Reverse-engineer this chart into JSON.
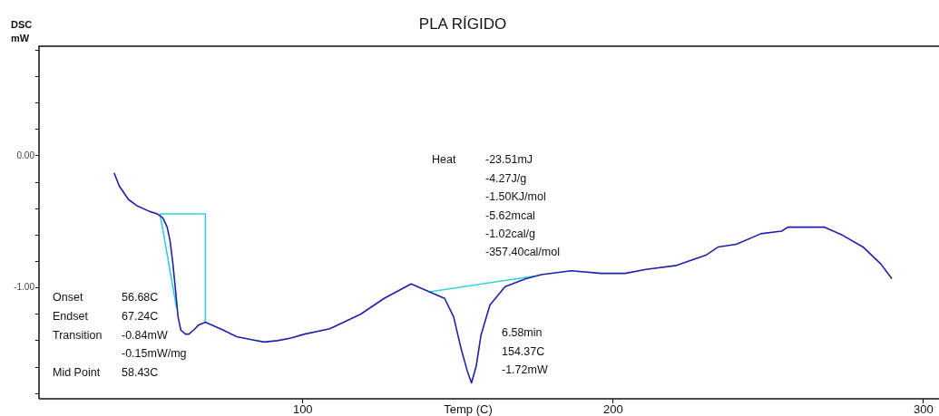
{
  "chart_data": {
    "type": "line",
    "title": "PLA RÍGIDO",
    "xlabel": "Temp (C)",
    "ylabel": "DSC\nmW",
    "xlim": [
      15,
      305
    ],
    "ylim": [
      -1.84,
      0.83
    ],
    "xticks": [
      100,
      200,
      300
    ],
    "yticks": [
      {
        "value": 0.8,
        "label": null
      },
      {
        "value": 0.6,
        "label": null
      },
      {
        "value": 0.4,
        "label": null
      },
      {
        "value": 0.2,
        "label": null
      },
      {
        "value": 0,
        "label": "0.00"
      },
      {
        "value": -0.2,
        "label": null
      },
      {
        "value": -0.4,
        "label": null
      },
      {
        "value": -0.6,
        "label": null
      },
      {
        "value": -0.8,
        "label": null
      },
      {
        "value": -1,
        "label": "-1.00"
      },
      {
        "value": -1.2,
        "label": null
      },
      {
        "value": -1.4,
        "label": null
      },
      {
        "value": -1.6,
        "label": null
      },
      {
        "value": -1.8,
        "label": null
      }
    ],
    "series": [
      {
        "color": "#2020a8",
        "x": [
          39.2,
          40.9,
          43.8,
          46.7,
          50.5,
          53.1,
          54.9,
          56.3,
          57.2,
          58.1,
          59.0,
          59.8,
          60.7,
          62.2,
          63.3,
          64.8,
          66.5,
          68.6,
          70.6,
          74.4,
          78.7,
          83.1,
          87.5,
          91.8,
          96.2,
          100.6,
          108.7,
          118.6,
          126.2,
          134.9,
          140.8,
          145.7,
          148.6,
          150.9,
          153.0,
          154.37,
          155.9,
          157.4,
          160.3,
          165.2,
          171.9,
          176.9,
          186.5,
          196.1,
          203.9,
          210.6,
          220.5,
          230.1,
          233.9,
          239.7,
          247.6,
          254.3,
          256.3,
          263.0,
          268.0,
          273.8,
          280.5,
          286.3,
          289.8
        ],
        "values": [
          -0.13,
          -0.23,
          -0.33,
          -0.38,
          -0.42,
          -0.44,
          -0.47,
          -0.54,
          -0.64,
          -0.81,
          -1.02,
          -1.22,
          -1.32,
          -1.35,
          -1.35,
          -1.32,
          -1.28,
          -1.26,
          -1.28,
          -1.32,
          -1.37,
          -1.39,
          -1.41,
          -1.4,
          -1.38,
          -1.35,
          -1.31,
          -1.2,
          -1.08,
          -0.97,
          -1.03,
          -1.08,
          -1.22,
          -1.45,
          -1.63,
          -1.72,
          -1.59,
          -1.36,
          -1.13,
          -0.99,
          -0.93,
          -0.9,
          -0.87,
          -0.89,
          -0.89,
          -0.86,
          -0.83,
          -0.75,
          -0.69,
          -0.67,
          -0.59,
          -0.57,
          -0.54,
          -0.54,
          -0.54,
          -0.6,
          -0.69,
          -0.82,
          -0.93
        ]
      },
      {
        "color": "#33d0e0",
        "x": [
          59.3,
          54.0,
          68.6,
          68.6
        ],
        "values": [
          -1.15,
          -0.44,
          -0.44,
          -1.26
        ]
      },
      {
        "color": "#33d0e0",
        "x": [
          140.8,
          174.8
        ],
        "values": [
          -1.03,
          -0.91
        ]
      }
    ],
    "annotations": [
      "Onset\t56.68C\nEndset\t67.24C\nTransition\t-0.84mW\n\t-0.15mW/mg\nMid Point\t58.43C",
      "Heat\t-23.51mJ\n\t-4.27J/g\n\t-1.50KJ/mol\n\t-5.62mcal\n\t-1.02cal/g\n\t-357.40cal/mol",
      "6.58min\n154.37C\n-1.72mW"
    ]
  }
}
